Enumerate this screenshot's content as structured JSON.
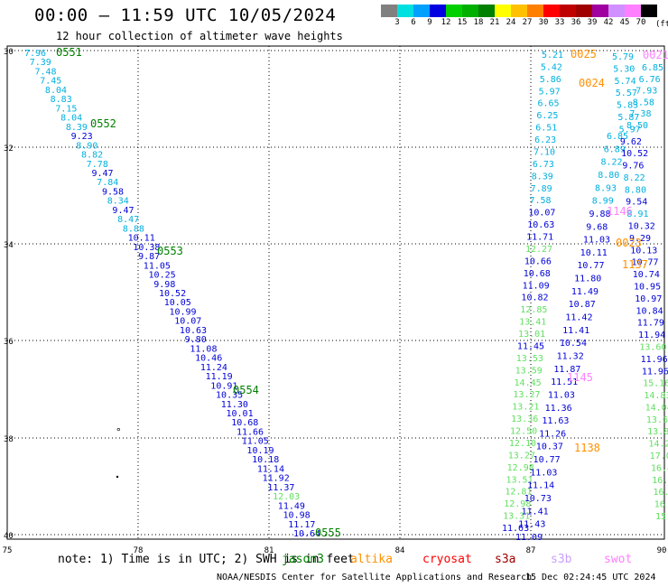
{
  "header": {
    "title": "00:00 – 11:59 UTC 10/05/2024",
    "subtitle": "12 hour collection of altimeter wave heights"
  },
  "legend": {
    "unit": "(ft)",
    "colors": [
      "#808080",
      "#00e0e0",
      "#00a0ff",
      "#0000e0",
      "#00d000",
      "#00b000",
      "#008000",
      "#ffff00",
      "#ffc000",
      "#ff8000",
      "#ff0000",
      "#c00000",
      "#a00000",
      "#a000a0",
      "#d090ff",
      "#ff80ff",
      "#000000"
    ],
    "labels": [
      "3",
      "6",
      "9",
      "12",
      "15",
      "18",
      "21",
      "24",
      "27",
      "30",
      "33",
      "36",
      "39",
      "42",
      "45",
      "70"
    ]
  },
  "map": {
    "y_ticks": [
      "30",
      "32",
      "34",
      "36",
      "38",
      "40"
    ],
    "x_ticks": [
      "75",
      "78",
      "81",
      "84",
      "87",
      "90"
    ],
    "west_track": {
      "start_label": "0551",
      "time_labels": [
        "0552",
        "0553",
        "0554"
      ],
      "end_label": "0555",
      "values": [
        "7.96",
        "7.39",
        "7.48",
        "7.45",
        "8.04",
        "8.83",
        "7.15",
        "8.04",
        "8.39",
        "9.23",
        "8.90",
        "8.82",
        "7.78",
        "9.47",
        "7.84",
        "9.58",
        "8.34",
        "9.47",
        "8.47",
        "8.88",
        "10.11",
        "10.38",
        "9.87",
        "11.05",
        "10.25",
        "9.98",
        "10.52",
        "10.05",
        "10.99",
        "10.07",
        "10.63",
        "9.80",
        "11.08",
        "10.46",
        "11.24",
        "11.19",
        "10.91",
        "10.35",
        "11.30",
        "10.01",
        "10.68",
        "11.66",
        "11.05",
        "10.19",
        "10.18",
        "11.14",
        "11.92",
        "11.37",
        "12.03",
        "11.49",
        "10.98",
        "11.17",
        "10.64"
      ]
    },
    "east_values": {
      "col_a": [
        "5.21",
        "5.42",
        "5.86",
        "5.97",
        "6.65",
        "6.25",
        "6.51",
        "6.23",
        "7.10",
        "6.73",
        "8.39",
        "7.89",
        "7.58",
        "10.07",
        "10.63",
        "11.71",
        "12.27",
        "10.66",
        "10.68",
        "11.09",
        "10.82",
        "12.85",
        "13.41",
        "13.01",
        "11.45",
        "13.53",
        "13.59",
        "14.45",
        "13.27",
        "13.21",
        "13.36",
        "12.50",
        "12.10",
        "13.27",
        "12.98",
        "13.51",
        "12.81",
        "12.98",
        "13.31",
        "11.63"
      ],
      "col_b": [
        "6.85",
        "6.89",
        "8.22",
        "8.80",
        "8.93",
        "8.99",
        "9.88",
        "9.68",
        "11.03",
        "10.11",
        "10.77",
        "11.80",
        "11.49",
        "10.87",
        "11.42",
        "11.41",
        "10.54",
        "11.32",
        "11.87",
        "11.51",
        "11.03",
        "11.36",
        "11.63",
        "11.26",
        "10.37",
        "10.77",
        "11.03",
        "11.14",
        "10.73",
        "11.41",
        "11.43",
        "11.09"
      ],
      "col_c": [
        "5.79",
        "5.30",
        "5.74",
        "5.57",
        "5.83",
        "5.87",
        "5.97",
        "9.62",
        "10.52",
        "9.76",
        "8.22",
        "8.80",
        "9.54",
        "8.91",
        "10.32",
        "9.29",
        "10.13",
        "10.77",
        "10.74",
        "10.95",
        "10.97",
        "10.84",
        "11.79",
        "11.94",
        "13.60",
        "11.96",
        "11.96",
        "15.16",
        "14.83",
        "14.04",
        "13.64",
        "13.83",
        "14.23",
        "17.02",
        "16.43",
        "16.01",
        "16.3",
        "16",
        "15"
      ],
      "col_d": [
        "6.85",
        "6.76",
        "7.93",
        "8.58",
        "7.38",
        "8.50"
      ],
      "time_labels": [
        {
          "text": "0025",
          "color": "orange"
        },
        {
          "text": "0024",
          "color": "orange"
        },
        {
          "text": "0021",
          "color": "pink"
        },
        {
          "text": "1146",
          "color": "pink"
        },
        {
          "text": "0023",
          "color": "orange"
        },
        {
          "text": "1137",
          "color": "orange"
        },
        {
          "text": "1145",
          "color": "pink"
        },
        {
          "text": "1138",
          "color": "orange"
        }
      ]
    },
    "dot_markers": [
      "°"
    ]
  },
  "footer": {
    "note": "note: 1) Time is in UTC; 2) SWH is in feet",
    "satellites": [
      {
        "name": "jason3",
        "color": "#008000"
      },
      {
        "name": "altika",
        "color": "#ff9000"
      },
      {
        "name": "cryosat",
        "color": "#ff0000"
      },
      {
        "name": "s3a",
        "color": "#a00000"
      },
      {
        "name": "s3b",
        "color": "#c8a0ff"
      },
      {
        "name": "swot",
        "color": "#ff80ff"
      }
    ],
    "credit": "NOAA/NESDIS Center for Satellite Applications and Research",
    "date": "15 Dec 02:24:45 UTC 2024"
  }
}
